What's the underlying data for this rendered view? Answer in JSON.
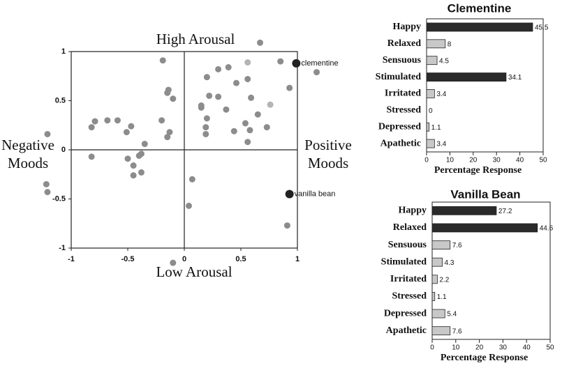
{
  "chart_data": [
    {
      "type": "scatter",
      "xlabel_top": "High Arousal",
      "xlabel_bottom": "Low Arousal",
      "ylabel_left": "Negative Moods",
      "ylabel_right": "Positive Moods",
      "xlim": [
        -1,
        1
      ],
      "ylim": [
        -1,
        1
      ],
      "xticks": [
        -1,
        -0.5,
        0,
        0.5,
        1
      ],
      "yticks": [
        -1,
        -0.5,
        0,
        0.5,
        1
      ],
      "series": [
        {
          "color": "#8c8c8c",
          "x": [
            0.67,
            -0.19,
            0.85,
            1.17,
            0.3,
            0.39,
            0.2,
            0.56,
            0.46,
            0.93,
            -0.14,
            -0.15,
            -0.1,
            0.22,
            0.3,
            0.59,
            0.15,
            0.15,
            0.37,
            0.65,
            -0.68,
            -0.79,
            -0.59,
            0.2,
            -0.2,
            -0.82,
            -0.47,
            0.54,
            0.19,
            0.73,
            -0.51,
            -0.13,
            0.19,
            0.44,
            0.58,
            -0.15,
            0.56,
            -1.21,
            -0.35,
            -0.82,
            -0.38,
            -0.4,
            -0.5,
            -0.45,
            -0.45,
            -0.38,
            -1.22,
            -1.21,
            0.07,
            0.04,
            0.91,
            -0.1
          ],
          "y": [
            1.09,
            0.91,
            0.9,
            0.79,
            0.82,
            0.84,
            0.74,
            0.72,
            0.68,
            0.63,
            0.61,
            0.58,
            0.52,
            0.55,
            0.54,
            0.53,
            0.45,
            0.43,
            0.41,
            0.36,
            0.3,
            0.29,
            0.3,
            0.32,
            0.3,
            0.23,
            0.24,
            0.27,
            0.23,
            0.23,
            0.18,
            0.18,
            0.16,
            0.19,
            0.2,
            0.13,
            0.08,
            0.16,
            0.06,
            -0.07,
            -0.04,
            -0.06,
            -0.09,
            -0.16,
            -0.26,
            -0.23,
            -0.35,
            -0.43,
            -0.3,
            -0.57,
            -0.77,
            -1.15
          ]
        },
        {
          "color": "#b4b4b4",
          "x": [
            0.56,
            0.76
          ],
          "y": [
            0.89,
            0.46
          ]
        },
        {
          "color": "#222222",
          "x": [
            0.99,
            0.93
          ],
          "y": [
            0.88,
            -0.45
          ],
          "labels": [
            "clementine",
            "vanilla bean"
          ]
        }
      ]
    },
    {
      "type": "hbar",
      "title": "Clementine",
      "categories": [
        "Happy",
        "Relaxed",
        "Sensuous",
        "Stimulated",
        "Irritated",
        "Stressed",
        "Depressed",
        "Apathetic"
      ],
      "values": [
        45.5,
        8,
        4.5,
        34.1,
        3.4,
        0,
        1.1,
        3.4
      ],
      "colors": [
        "#2a2a2a",
        "#c8c8c8",
        "#c8c8c8",
        "#2a2a2a",
        "#c8c8c8",
        "#c8c8c8",
        "#c8c8c8",
        "#c8c8c8"
      ],
      "xlabel": "Percentage Response",
      "xlim": [
        0,
        50
      ],
      "xticks": [
        0,
        10,
        20,
        30,
        40,
        50
      ]
    },
    {
      "type": "hbar",
      "title": "Vanilla Bean",
      "categories": [
        "Happy",
        "Relaxed",
        "Sensuous",
        "Stimulated",
        "Irritated",
        "Stressed",
        "Depressed",
        "Apathetic"
      ],
      "values": [
        27.2,
        44.6,
        7.6,
        4.3,
        2.2,
        1.1,
        5.4,
        7.6
      ],
      "colors": [
        "#2a2a2a",
        "#2a2a2a",
        "#c8c8c8",
        "#c8c8c8",
        "#c8c8c8",
        "#c8c8c8",
        "#c8c8c8",
        "#c8c8c8"
      ],
      "xlabel": "Percentage Response",
      "xlim": [
        0,
        50
      ],
      "xticks": [
        0,
        10,
        20,
        30,
        40,
        50
      ]
    }
  ]
}
